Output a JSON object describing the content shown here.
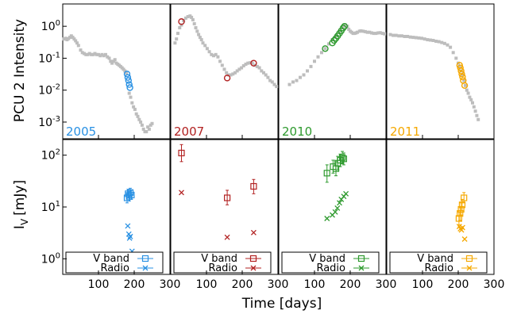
{
  "figure": {
    "xlabel": "Time [days]",
    "ylabel_top": "PCU 2 Intensity",
    "ylabel_bottom": "I_V [mJy]",
    "ylabel_bottom_main": "I",
    "ylabel_bottom_sub": "V",
    "ylabel_bottom_rest": "[mJy]"
  },
  "chart_data": [
    {
      "type": "scatter",
      "panel": "top",
      "ylabel": "PCU 2 Intensity",
      "yscale": "log",
      "ylim": [
        0.0003,
        5
      ],
      "yticks": [
        {
          "v": 1,
          "label": "10^0"
        },
        {
          "v": 0.1,
          "label": "10^-1"
        },
        {
          "v": 0.01,
          "label": "10^-2"
        },
        {
          "v": 0.001,
          "label": "10^-3"
        }
      ],
      "xlim": [
        0,
        300
      ],
      "xticks": [
        100,
        200,
        300
      ],
      "outburst_labels": [
        "2005",
        "2007",
        "2010",
        "2011"
      ],
      "colors": {
        "grey": "#bdbdbd",
        "2005": "#2a91e3",
        "2007": "#b22222",
        "2010": "#2e9a2e",
        "2011": "#f5a800"
      },
      "series": [
        {
          "outburst": "2005",
          "grey_x": [
            3,
            8,
            12,
            16,
            20,
            24,
            28,
            32,
            36,
            40,
            44,
            50,
            55,
            60,
            65,
            70,
            75,
            80,
            85,
            90,
            95,
            100,
            105,
            110,
            115,
            120,
            125,
            130,
            134,
            138,
            142,
            146,
            150,
            154,
            158,
            162,
            166,
            170,
            174,
            178,
            186,
            190,
            194,
            198,
            202,
            206,
            210,
            214,
            218,
            222,
            226,
            230,
            234,
            238,
            242,
            246,
            250
          ],
          "grey_y": [
            0.4,
            0.42,
            0.38,
            0.41,
            0.45,
            0.5,
            0.45,
            0.4,
            0.35,
            0.3,
            0.25,
            0.18,
            0.15,
            0.14,
            0.13,
            0.13,
            0.14,
            0.13,
            0.13,
            0.14,
            0.13,
            0.13,
            0.12,
            0.13,
            0.12,
            0.13,
            0.11,
            0.1,
            0.08,
            0.07,
            0.08,
            0.09,
            0.07,
            0.065,
            0.06,
            0.055,
            0.05,
            0.045,
            0.04,
            0.035,
            0.008,
            0.006,
            0.004,
            0.003,
            0.0025,
            0.0018,
            0.0015,
            0.0012,
            0.001,
            0.0008,
            0.0006,
            0.0005,
            0.0005,
            0.0007,
            0.0006,
            0.0008,
            0.0009
          ],
          "hl_x": [
            180,
            182,
            184,
            186,
            188
          ],
          "hl_y": [
            0.032,
            0.025,
            0.02,
            0.015,
            0.012
          ]
        },
        {
          "outburst": "2007",
          "grey_x": [
            12,
            16,
            20,
            25,
            30,
            36,
            42,
            48,
            54,
            58,
            62,
            66,
            70,
            74,
            78,
            82,
            86,
            90,
            96,
            102,
            108,
            114,
            120,
            126,
            132,
            138,
            144,
            150,
            156,
            162,
            168,
            174,
            180,
            186,
            192,
            198,
            204,
            210,
            216,
            222,
            228,
            236,
            242,
            248,
            254,
            260,
            266,
            272,
            278,
            284,
            290,
            296
          ],
          "grey_y": [
            0.3,
            0.4,
            0.6,
            0.9,
            1.1,
            1.5,
            1.8,
            2.0,
            2.1,
            1.9,
            1.6,
            1.2,
            0.9,
            0.7,
            0.55,
            0.45,
            0.38,
            0.3,
            0.25,
            0.2,
            0.16,
            0.13,
            0.12,
            0.13,
            0.11,
            0.08,
            0.06,
            0.045,
            0.035,
            0.03,
            0.03,
            0.032,
            0.035,
            0.04,
            0.045,
            0.05,
            0.058,
            0.065,
            0.07,
            0.072,
            0.07,
            0.06,
            0.055,
            0.05,
            0.04,
            0.035,
            0.03,
            0.025,
            0.02,
            0.018,
            0.015,
            0.013
          ],
          "hl_x": [
            30,
            158,
            232
          ],
          "hl_y": [
            1.4,
            0.024,
            0.07
          ]
        },
        {
          "outburst": "2010",
          "grey_x": [
            30,
            40,
            50,
            60,
            70,
            80,
            90,
            100,
            110,
            120,
            130,
            140,
            150,
            160,
            170,
            180,
            186,
            192,
            196,
            200,
            204,
            208,
            212,
            216,
            220,
            226,
            230,
            236,
            242,
            248,
            254,
            260,
            266,
            272,
            278,
            284,
            290,
            296
          ],
          "grey_y": [
            0.015,
            0.018,
            0.02,
            0.025,
            0.03,
            0.04,
            0.055,
            0.08,
            0.11,
            0.15,
            0.2,
            0.28,
            0.38,
            0.5,
            0.7,
            0.9,
            1.1,
            1.0,
            0.8,
            0.7,
            0.65,
            0.6,
            0.6,
            0.62,
            0.65,
            0.7,
            0.72,
            0.7,
            0.68,
            0.65,
            0.65,
            0.62,
            0.6,
            0.6,
            0.62,
            0.63,
            0.6,
            0.58
          ],
          "hl_x": [
            130,
            150,
            155,
            160,
            165,
            170,
            175,
            180,
            184
          ],
          "hl_y": [
            0.2,
            0.3,
            0.36,
            0.42,
            0.5,
            0.6,
            0.72,
            0.88,
            1.0
          ]
        },
        {
          "outburst": "2011",
          "grey_x": [
            10,
            18,
            26,
            34,
            42,
            50,
            58,
            66,
            74,
            82,
            90,
            98,
            106,
            114,
            122,
            130,
            138,
            146,
            154,
            162,
            170,
            178,
            186,
            194,
            200,
            204,
            208,
            212,
            216,
            220,
            224,
            228,
            232,
            236,
            240,
            244,
            248,
            252,
            256
          ],
          "grey_y": [
            0.55,
            0.52,
            0.52,
            0.5,
            0.5,
            0.48,
            0.48,
            0.46,
            0.45,
            0.44,
            0.43,
            0.42,
            0.4,
            0.38,
            0.37,
            0.36,
            0.34,
            0.33,
            0.31,
            0.29,
            0.26,
            0.22,
            0.15,
            0.1,
            0.07,
            0.055,
            0.04,
            0.03,
            0.02,
            0.014,
            0.01,
            0.008,
            0.006,
            0.005,
            0.004,
            0.003,
            0.0022,
            0.0016,
            0.0012
          ],
          "hl_x": [
            204,
            206,
            208,
            210,
            212,
            214,
            218
          ],
          "hl_y": [
            0.06,
            0.05,
            0.04,
            0.032,
            0.026,
            0.02,
            0.014
          ]
        }
      ]
    },
    {
      "type": "scatter",
      "panel": "bottom",
      "ylabel": "I_V [mJy]",
      "yscale": "log",
      "ylim": [
        0.5,
        200
      ],
      "yticks": [
        {
          "v": 100,
          "label": "10^2"
        },
        {
          "v": 10,
          "label": "10^1"
        },
        {
          "v": 1,
          "label": "10^0"
        }
      ],
      "xlim": [
        0,
        300
      ],
      "xticks": [
        100,
        200,
        300
      ],
      "legend_labels": [
        "V band",
        "Radio"
      ],
      "series": [
        {
          "outburst": "2005",
          "vband": [
            {
              "x": 180,
              "y": 15,
              "lo": 12,
              "hi": 19
            },
            {
              "x": 183,
              "y": 18,
              "lo": 15,
              "hi": 22
            },
            {
              "x": 186,
              "y": 16,
              "lo": 13,
              "hi": 20
            },
            {
              "x": 189,
              "y": 19,
              "lo": 16,
              "hi": 23
            },
            {
              "x": 192,
              "y": 17,
              "lo": 14,
              "hi": 21
            }
          ],
          "radio": [
            {
              "x": 182,
              "y": 4.3
            },
            {
              "x": 185,
              "y": 3.0
            },
            {
              "x": 187,
              "y": 2.5
            },
            {
              "x": 189,
              "y": 2.7
            },
            {
              "x": 194,
              "y": 1.4
            }
          ]
        },
        {
          "outburst": "2007",
          "vband": [
            {
              "x": 30,
              "y": 110,
              "lo": 75,
              "hi": 160
            },
            {
              "x": 158,
              "y": 15,
              "lo": 11,
              "hi": 21
            },
            {
              "x": 232,
              "y": 25,
              "lo": 18,
              "hi": 34
            }
          ],
          "radio": [
            {
              "x": 30,
              "y": 19
            },
            {
              "x": 158,
              "y": 2.6
            },
            {
              "x": 232,
              "y": 3.2
            }
          ]
        },
        {
          "outburst": "2010",
          "vband": [
            {
              "x": 135,
              "y": 45,
              "lo": 30,
              "hi": 65
            },
            {
              "x": 152,
              "y": 60,
              "lo": 45,
              "hi": 80
            },
            {
              "x": 160,
              "y": 55,
              "lo": 40,
              "hi": 75
            },
            {
              "x": 165,
              "y": 70,
              "lo": 52,
              "hi": 95
            },
            {
              "x": 172,
              "y": 80,
              "lo": 60,
              "hi": 105
            },
            {
              "x": 178,
              "y": 90,
              "lo": 68,
              "hi": 118
            },
            {
              "x": 182,
              "y": 85,
              "lo": 65,
              "hi": 110
            }
          ],
          "radio": [
            {
              "x": 135,
              "y": 6.0
            },
            {
              "x": 150,
              "y": 7.0
            },
            {
              "x": 158,
              "y": 8.0
            },
            {
              "x": 164,
              "y": 9.5
            },
            {
              "x": 170,
              "y": 12
            },
            {
              "x": 175,
              "y": 14
            },
            {
              "x": 182,
              "y": 16
            },
            {
              "x": 188,
              "y": 18
            }
          ]
        },
        {
          "outburst": "2011",
          "vband": [
            {
              "x": 202,
              "y": 6.0,
              "lo": 4.5,
              "hi": 8
            },
            {
              "x": 205,
              "y": 7.5,
              "lo": 5.5,
              "hi": 10
            },
            {
              "x": 208,
              "y": 9.0,
              "lo": 7,
              "hi": 12
            },
            {
              "x": 211,
              "y": 11,
              "lo": 8.5,
              "hi": 14
            },
            {
              "x": 216,
              "y": 15,
              "lo": 12,
              "hi": 19
            }
          ],
          "radio": [
            {
              "x": 203,
              "y": 4.2
            },
            {
              "x": 206,
              "y": 3.8
            },
            {
              "x": 209,
              "y": 3.6
            },
            {
              "x": 212,
              "y": 4.0
            },
            {
              "x": 218,
              "y": 2.4
            }
          ]
        }
      ]
    }
  ]
}
